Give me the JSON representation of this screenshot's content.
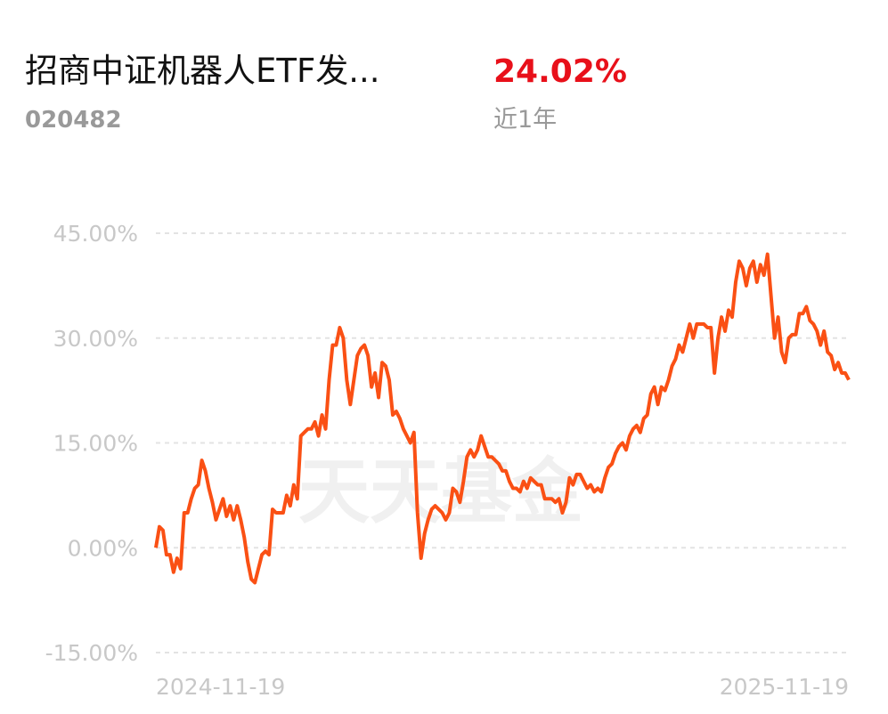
{
  "header": {
    "title": "招商中证机器人ETF发...",
    "code": "020482",
    "return": "24.02%",
    "period": "近1年"
  },
  "chart_data": {
    "type": "line",
    "watermark": "天天基金",
    "categories": [
      "2024-11-19",
      null,
      null,
      null,
      null,
      null,
      null,
      null,
      null,
      null,
      null,
      null,
      null,
      null,
      null,
      null,
      null,
      null,
      null,
      null,
      null,
      null,
      null,
      null,
      null,
      null,
      null,
      null,
      null,
      null,
      null,
      null,
      null,
      null,
      null,
      null,
      null,
      null,
      null,
      null,
      null,
      null,
      null,
      null,
      null,
      null,
      null,
      null,
      null,
      null,
      null,
      null,
      null,
      null,
      null,
      null,
      null,
      null,
      null,
      null,
      null,
      null,
      null,
      null,
      null,
      null,
      null,
      null,
      null,
      null,
      null,
      null,
      null,
      null,
      null,
      null,
      null,
      null,
      null,
      null,
      null,
      null,
      null,
      null,
      null,
      null,
      null,
      null,
      null,
      null,
      null,
      null,
      null,
      null,
      null,
      null,
      null,
      null,
      null,
      null,
      null,
      null,
      null,
      null,
      null,
      null,
      null,
      null,
      null,
      null,
      null,
      null,
      null,
      null,
      null,
      null,
      null,
      null,
      null,
      null,
      null,
      null,
      null,
      null,
      null,
      null,
      null,
      null,
      null,
      null,
      null,
      null,
      null,
      null,
      null,
      null,
      null,
      null,
      null,
      null,
      null,
      null,
      null,
      null,
      null,
      null,
      null,
      null,
      null,
      null,
      null,
      null,
      null,
      null,
      null,
      null,
      null,
      null,
      null,
      null,
      null,
      null,
      null,
      null,
      null,
      null,
      null,
      null,
      null,
      null,
      null,
      null,
      null,
      null,
      null,
      null,
      null,
      null,
      null,
      null,
      null,
      null,
      null,
      null,
      null,
      null,
      null,
      null,
      null,
      null,
      null,
      null,
      null,
      null,
      null,
      null,
      "2025-11-19"
    ],
    "series": [
      {
        "color": "#fa5014",
        "values": [
          0,
          3,
          2.5,
          -1,
          -1,
          -3.5,
          -1.5,
          -3,
          5,
          5,
          7,
          8.5,
          9,
          12.5,
          11,
          8.5,
          6.5,
          4,
          5.5,
          7,
          4.5,
          6,
          4,
          6,
          4,
          1.5,
          -2,
          -4.5,
          -5,
          -3,
          -1,
          -0.5,
          -1,
          5.5,
          5,
          5,
          5,
          7.5,
          6,
          9,
          7,
          16,
          16.5,
          17,
          17,
          18,
          16,
          19,
          17,
          24,
          29,
          29,
          31.5,
          30,
          24,
          20.5,
          24,
          27.5,
          28.5,
          29,
          27.5,
          23,
          25,
          21.5,
          26.5,
          26,
          24,
          19,
          19.5,
          18.5,
          17,
          16,
          15,
          16.5,
          5,
          -1.5,
          2,
          4,
          5.5,
          6,
          5.5,
          5,
          4,
          5,
          8.5,
          8,
          6.5,
          9.5,
          13,
          14,
          13,
          14,
          16,
          14.5,
          13,
          13,
          12.5,
          12,
          11,
          11,
          9.5,
          8.5,
          8.5,
          8,
          9.5,
          8.5,
          10,
          9.5,
          9,
          9,
          7,
          7,
          7,
          6.5,
          7,
          5,
          6.5,
          10,
          9,
          10.5,
          10.5,
          9.5,
          8.5,
          9,
          8,
          8.5,
          8,
          10,
          11.5,
          12,
          13.5,
          14.5,
          15,
          14,
          16,
          17,
          17.5,
          16.5,
          18.5,
          19,
          22,
          23,
          20.5,
          23,
          22.5,
          24,
          26,
          27,
          29,
          28,
          30,
          32,
          30,
          32,
          32,
          32,
          31.5,
          31.5,
          25,
          30,
          33,
          31,
          34,
          33,
          38,
          41,
          40,
          37.5,
          40,
          41,
          38,
          40.5,
          39,
          42,
          36,
          30,
          33,
          28,
          26.5,
          30,
          30.5,
          30.5,
          33.5,
          33.5,
          34.5,
          32.5,
          32,
          31,
          29,
          31,
          28,
          27.5,
          25.5,
          26.5,
          25,
          25,
          24.02
        ]
      }
    ],
    "ylim": [
      -15,
      45
    ],
    "yticks": [
      {
        "value": -15,
        "label": "-15.00%"
      },
      {
        "value": 0,
        "label": "0.00%"
      },
      {
        "value": 15,
        "label": "15.00%"
      },
      {
        "value": 30,
        "label": "30.00%"
      },
      {
        "value": 45,
        "label": "45.00%"
      }
    ],
    "grid": true
  }
}
